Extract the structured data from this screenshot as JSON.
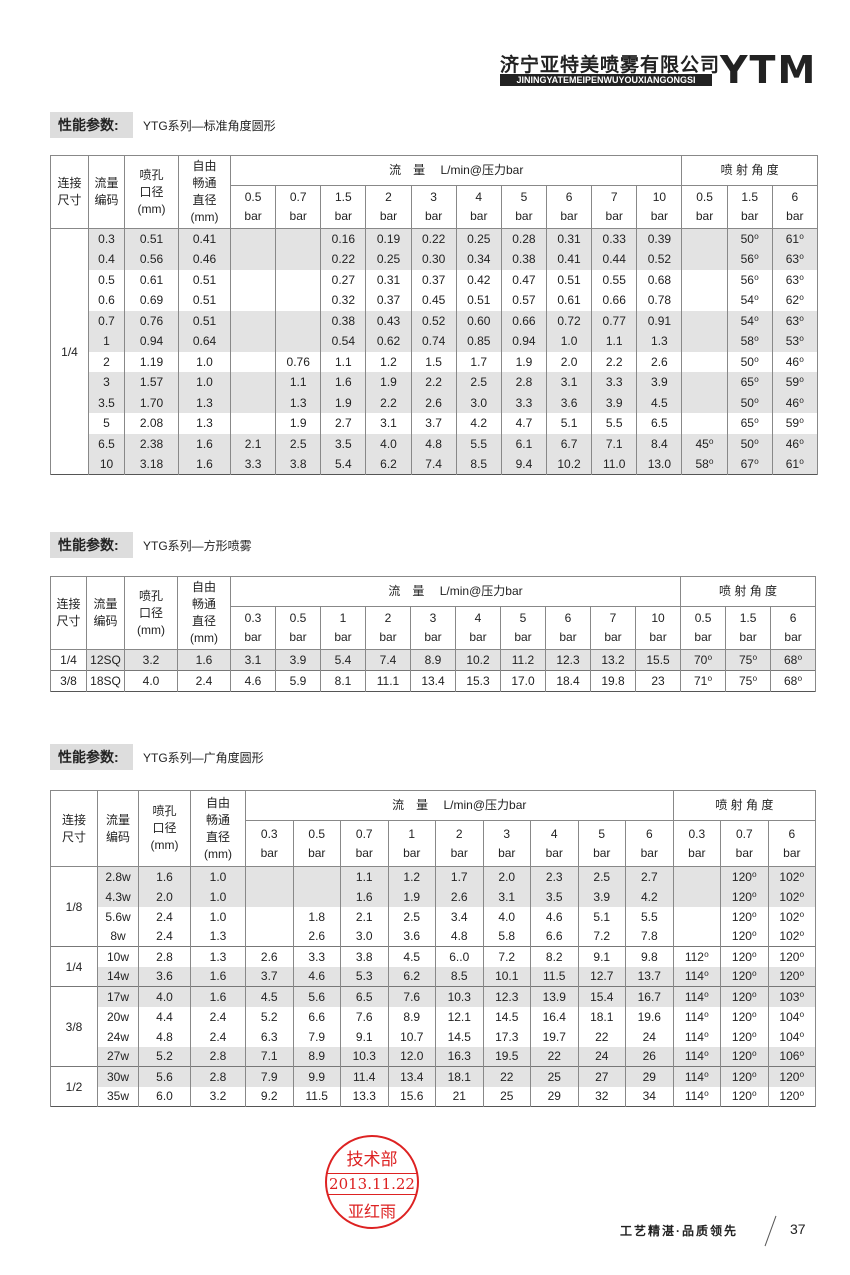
{
  "header": {
    "company": "济宁亚特美喷雾有限公司",
    "pinyin": "JININGYATEMEIPENWUYOUXIANGONGSI",
    "logo": "YTM"
  },
  "colors": {
    "row_shade": "#e3e3e3",
    "stamp": "#dd2222"
  },
  "tables": [
    {
      "section_label": "性能参数:",
      "subtitle": "YTG系列—标准角度圆形",
      "headers": {
        "conn": "连接\n尺寸",
        "code": "流量\n编码",
        "orifice": "喷孔\n口径\n(mm)",
        "free": "自由\n畅通\n直径\n(mm)",
        "flow": "流　量　 L/min@压力bar",
        "angle": "喷 射 角 度"
      },
      "pressures": [
        "0.5",
        "0.7",
        "1.5",
        "2",
        "3",
        "4",
        "5",
        "6",
        "7",
        "10"
      ],
      "angle_pressures": [
        "0.5",
        "1.5",
        "6"
      ],
      "unit": "bar",
      "groups": [
        {
          "size": "1/4",
          "rows": [
            [
              "0.3",
              "0.51",
              "0.41",
              "",
              "",
              "0.16",
              "0.19",
              "0.22",
              "0.25",
              "0.28",
              "0.31",
              "0.33",
              "0.39",
              "",
              "50⁰",
              "61⁰"
            ],
            [
              "0.4",
              "0.56",
              "0.46",
              "",
              "",
              "0.22",
              "0.25",
              "0.30",
              "0.34",
              "0.38",
              "0.41",
              "0.44",
              "0.52",
              "",
              "56⁰",
              "63⁰"
            ],
            [
              "0.5",
              "0.61",
              "0.51",
              "",
              "",
              "0.27",
              "0.31",
              "0.37",
              "0.42",
              "0.47",
              "0.51",
              "0.55",
              "0.68",
              "",
              "56⁰",
              "63⁰"
            ],
            [
              "0.6",
              "0.69",
              "0.51",
              "",
              "",
              "0.32",
              "0.37",
              "0.45",
              "0.51",
              "0.57",
              "0.61",
              "0.66",
              "0.78",
              "",
              "54⁰",
              "62⁰"
            ],
            [
              "0.7",
              "0.76",
              "0.51",
              "",
              "",
              "0.38",
              "0.43",
              "0.52",
              "0.60",
              "0.66",
              "0.72",
              "0.77",
              "0.91",
              "",
              "54⁰",
              "63⁰"
            ],
            [
              "1",
              "0.94",
              "0.64",
              "",
              "",
              "0.54",
              "0.62",
              "0.74",
              "0.85",
              "0.94",
              "1.0",
              "1.1",
              "1.3",
              "",
              "58⁰",
              "53⁰"
            ],
            [
              "2",
              "1.19",
              "1.0",
              "",
              "0.76",
              "1.1",
              "1.2",
              "1.5",
              "1.7",
              "1.9",
              "2.0",
              "2.2",
              "2.6",
              "",
              "50⁰",
              "46⁰"
            ],
            [
              "3",
              "1.57",
              "1.0",
              "",
              "1.1",
              "1.6",
              "1.9",
              "2.2",
              "2.5",
              "2.8",
              "3.1",
              "3.3",
              "3.9",
              "",
              "65⁰",
              "59⁰"
            ],
            [
              "3.5",
              "1.70",
              "1.3",
              "",
              "1.3",
              "1.9",
              "2.2",
              "2.6",
              "3.0",
              "3.3",
              "3.6",
              "3.9",
              "4.5",
              "",
              "50⁰",
              "46⁰"
            ],
            [
              "5",
              "2.08",
              "1.3",
              "",
              "1.9",
              "2.7",
              "3.1",
              "3.7",
              "4.2",
              "4.7",
              "5.1",
              "5.5",
              "6.5",
              "",
              "65⁰",
              "59⁰"
            ],
            [
              "6.5",
              "2.38",
              "1.6",
              "2.1",
              "2.5",
              "3.5",
              "4.0",
              "4.8",
              "5.5",
              "6.1",
              "6.7",
              "7.1",
              "8.4",
              "45⁰",
              "50⁰",
              "46⁰"
            ],
            [
              "10",
              "3.18",
              "1.6",
              "3.3",
              "3.8",
              "5.4",
              "6.2",
              "7.4",
              "8.5",
              "9.4",
              "10.2",
              "11.0",
              "13.0",
              "58⁰",
              "67⁰",
              "61⁰"
            ]
          ]
        }
      ],
      "shaded": [
        1,
        1,
        0,
        0,
        1,
        1,
        0,
        1,
        1,
        0,
        1,
        1
      ]
    },
    {
      "section_label": "性能参数:",
      "subtitle": "YTG系列—方形喷雾",
      "headers": {
        "conn": "连接\n尺寸",
        "code": "流量\n编码",
        "orifice": "喷孔\n口径\n(mm)",
        "free": "自由\n畅通\n直径\n(mm)",
        "flow": "流　量　 L/min@压力bar",
        "angle": "喷 射 角 度"
      },
      "pressures": [
        "0.3",
        "0.5",
        "1",
        "2",
        "3",
        "4",
        "5",
        "6",
        "7",
        "10"
      ],
      "angle_pressures": [
        "0.5",
        "1.5",
        "6"
      ],
      "unit": "bar",
      "groups": [
        {
          "size": "1/4",
          "rows": [
            [
              "12SQ",
              "3.2",
              "1.6",
              "3.1",
              "3.9",
              "5.4",
              "7.4",
              "8.9",
              "10.2",
              "11.2",
              "12.3",
              "13.2",
              "15.5",
              "70⁰",
              "75⁰",
              "68⁰"
            ]
          ]
        },
        {
          "size": "3/8",
          "rows": [
            [
              "18SQ",
              "4.0",
              "2.4",
              "4.6",
              "5.9",
              "8.1",
              "11.1",
              "13.4",
              "15.3",
              "17.0",
              "18.4",
              "19.8",
              "23",
              "71⁰",
              "75⁰",
              "68⁰"
            ]
          ]
        }
      ],
      "shaded": [
        1,
        0
      ]
    },
    {
      "section_label": "性能参数:",
      "subtitle": "YTG系列—广角度圆形",
      "headers": {
        "conn": "连接\n尺寸",
        "code": "流量\n编码",
        "orifice": "喷孔\n口径\n(mm)",
        "free": "自由\n畅通\n直径\n(mm)",
        "flow": "流　量　 L/min@压力bar",
        "angle": "喷 射 角 度"
      },
      "pressures": [
        "0.3",
        "0.5",
        "0.7",
        "1",
        "2",
        "3",
        "4",
        "5",
        "6"
      ],
      "angle_pressures": [
        "0.3",
        "0.7",
        "6"
      ],
      "unit": "bar",
      "groups": [
        {
          "size": "1/8",
          "rows": [
            [
              "2.8w",
              "1.6",
              "1.0",
              "",
              "",
              "1.1",
              "1.2",
              "1.7",
              "2.0",
              "2.3",
              "2.5",
              "2.7",
              "",
              "120⁰",
              "102⁰"
            ],
            [
              "4.3w",
              "2.0",
              "1.0",
              "",
              "",
              "1.6",
              "1.9",
              "2.6",
              "3.1",
              "3.5",
              "3.9",
              "4.2",
              "",
              "120⁰",
              "102⁰"
            ],
            [
              "5.6w",
              "2.4",
              "1.0",
              "",
              "1.8",
              "2.1",
              "2.5",
              "3.4",
              "4.0",
              "4.6",
              "5.1",
              "5.5",
              "",
              "120⁰",
              "102⁰"
            ],
            [
              "8w",
              "2.4",
              "1.3",
              "",
              "2.6",
              "3.0",
              "3.6",
              "4.8",
              "5.8",
              "6.6",
              "7.2",
              "7.8",
              "",
              "120⁰",
              "102⁰"
            ]
          ]
        },
        {
          "size": "1/4",
          "rows": [
            [
              "10w",
              "2.8",
              "1.3",
              "2.6",
              "3.3",
              "3.8",
              "4.5",
              "6..0",
              "7.2",
              "8.2",
              "9.1",
              "9.8",
              "112⁰",
              "120⁰",
              "120⁰"
            ],
            [
              "14w",
              "3.6",
              "1.6",
              "3.7",
              "4.6",
              "5.3",
              "6.2",
              "8.5",
              "10.1",
              "11.5",
              "12.7",
              "13.7",
              "114⁰",
              "120⁰",
              "120⁰"
            ]
          ]
        },
        {
          "size": "3/8",
          "rows": [
            [
              "17w",
              "4.0",
              "1.6",
              "4.5",
              "5.6",
              "6.5",
              "7.6",
              "10.3",
              "12.3",
              "13.9",
              "15.4",
              "16.7",
              "114⁰",
              "120⁰",
              "103⁰"
            ],
            [
              "20w",
              "4.4",
              "2.4",
              "5.2",
              "6.6",
              "7.6",
              "8.9",
              "12.1",
              "14.5",
              "16.4",
              "18.1",
              "19.6",
              "114⁰",
              "120⁰",
              "104⁰"
            ],
            [
              "24w",
              "4.8",
              "2.4",
              "6.3",
              "7.9",
              "9.1",
              "10.7",
              "14.5",
              "17.3",
              "19.7",
              "22",
              "24",
              "114⁰",
              "120⁰",
              "104⁰"
            ],
            [
              "27w",
              "5.2",
              "2.8",
              "7.1",
              "8.9",
              "10.3",
              "12.0",
              "16.3",
              "19.5",
              "22",
              "24",
              "26",
              "114⁰",
              "120⁰",
              "106⁰"
            ]
          ]
        },
        {
          "size": "1/2",
          "rows": [
            [
              "30w",
              "5.6",
              "2.8",
              "7.9",
              "9.9",
              "11.4",
              "13.4",
              "18.1",
              "22",
              "25",
              "27",
              "29",
              "114⁰",
              "120⁰",
              "120⁰"
            ],
            [
              "35w",
              "6.0",
              "3.2",
              "9.2",
              "11.5",
              "13.3",
              "15.6",
              "21",
              "25",
              "29",
              "32",
              "34",
              "114⁰",
              "120⁰",
              "120⁰"
            ]
          ]
        }
      ],
      "shaded": [
        1,
        1,
        0,
        0,
        0,
        1,
        1,
        0,
        0,
        1,
        1,
        0
      ]
    }
  ],
  "stamp": {
    "line1": "技术部",
    "line2": "2013.11.22",
    "line3": "亚红雨"
  },
  "footer": {
    "slogan": "工艺精湛·品质领先",
    "page": "37"
  }
}
